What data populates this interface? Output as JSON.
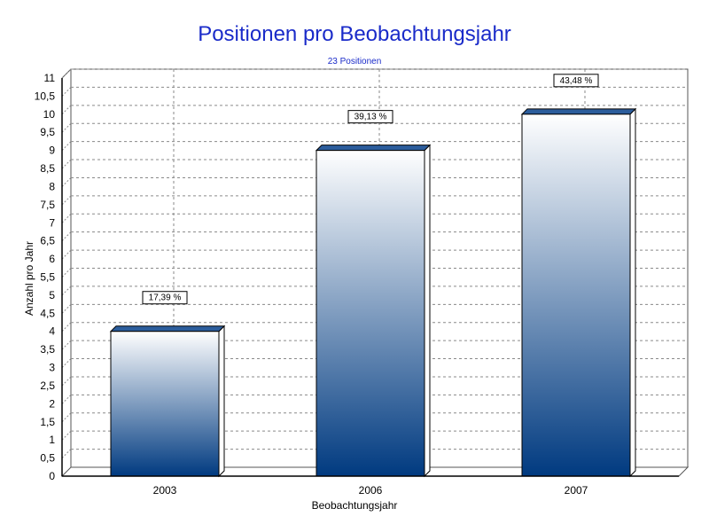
{
  "chart_data": {
    "type": "bar",
    "title": "Positionen pro Beobachtungsjahr",
    "subtitle": "23 Positionen",
    "xlabel": "Beobachtungsjahr",
    "ylabel": "Anzahl pro Jahr",
    "categories": [
      "2003",
      "2006",
      "2007"
    ],
    "values": [
      4,
      9,
      10
    ],
    "data_labels": [
      "17,39 %",
      "39,13 %",
      "43,48 %"
    ],
    "ylim": [
      0,
      11
    ],
    "y_ticks": [
      "0",
      "0,5",
      "1",
      "1,5",
      "2",
      "2,5",
      "3",
      "3,5",
      "4",
      "4,5",
      "5",
      "5,5",
      "6",
      "6,5",
      "7",
      "7,5",
      "8",
      "8,5",
      "9",
      "9,5",
      "10",
      "10,5",
      "11"
    ],
    "grid": true,
    "legend": "none",
    "colors": {
      "title": "#1a2bc9",
      "bar_top": "#ffffff",
      "bar_bottom": "#003a80",
      "bar_cap": "#2c5d9c",
      "bar_side": "#ffffff",
      "grid": "#8a8a8a",
      "wall_edge": "#555555"
    }
  }
}
